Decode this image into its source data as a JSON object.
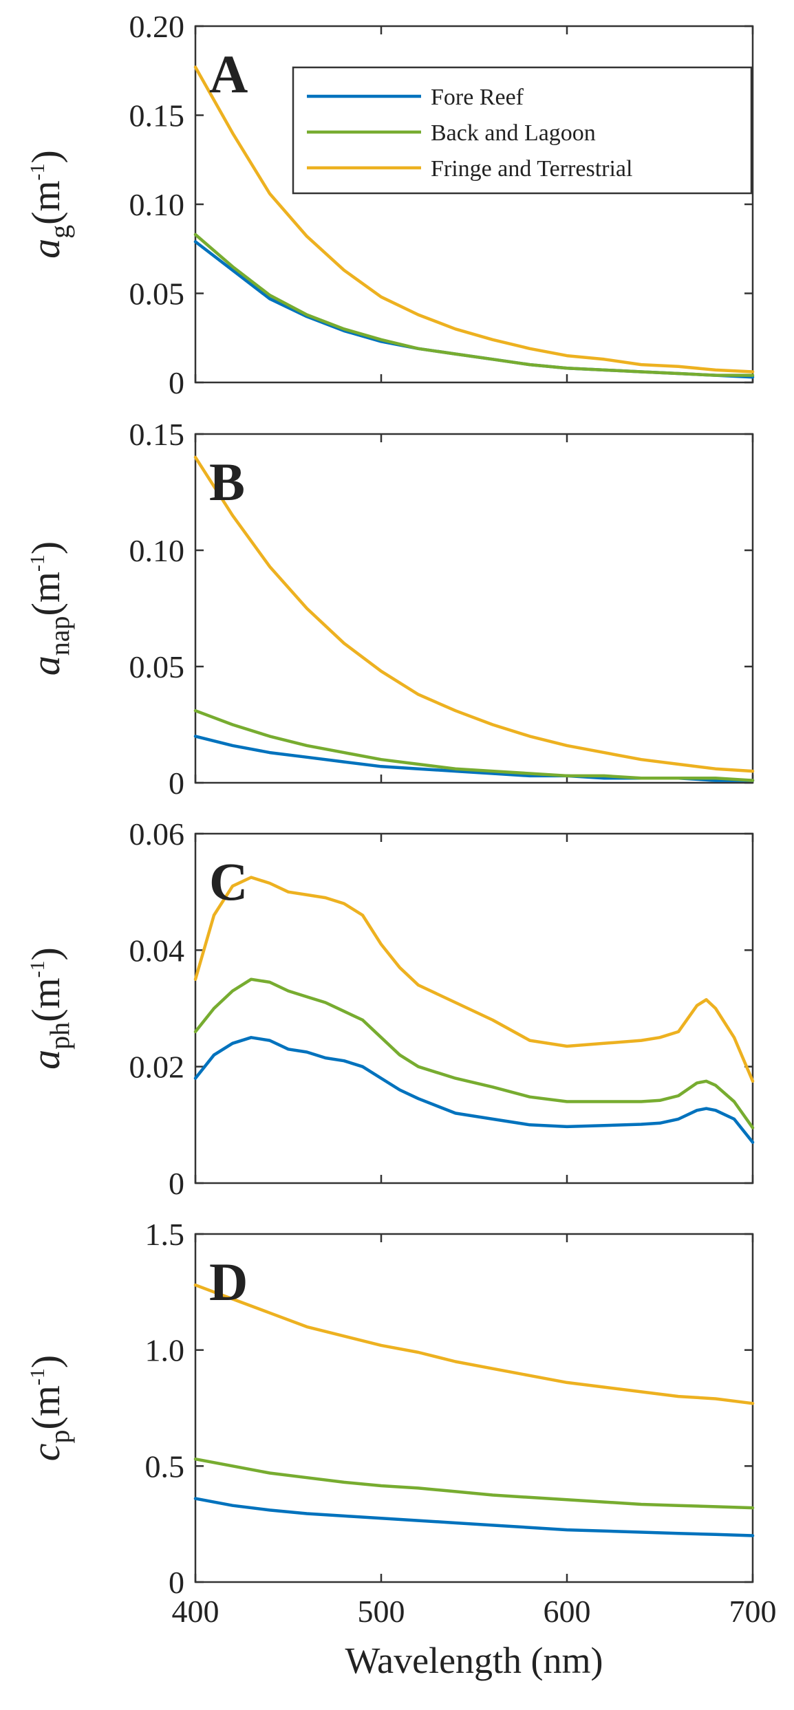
{
  "colors": {
    "Fore Reef": "#0072BD",
    "Back and Lagoon": "#77AC30",
    "Fringe and Terrestrial": "#EDB120"
  },
  "chart_data": [
    {
      "type": "line",
      "panel": "A",
      "ylabel": {
        "main": "a",
        "sub": "g",
        "unit": "(m",
        "sup": "-1",
        "close": ")"
      },
      "xlim": [
        400,
        700
      ],
      "ylim": [
        0,
        0.2
      ],
      "yticks": [
        "0",
        "0.05",
        "0.10",
        "0.15",
        "0.20"
      ],
      "ytick_values": [
        0,
        0.05,
        0.1,
        0.15,
        0.2
      ],
      "legend": {
        "location": "top-right",
        "entries": [
          "Fore Reef",
          "Back and Lagoon",
          "Fringe and Terrestrial"
        ]
      },
      "x": [
        400,
        420,
        440,
        460,
        480,
        500,
        520,
        540,
        560,
        580,
        600,
        620,
        640,
        660,
        680,
        700
      ],
      "series": [
        {
          "name": "Fore Reef",
          "values": [
            0.079,
            0.063,
            0.047,
            0.037,
            0.029,
            0.023,
            0.019,
            0.016,
            0.013,
            0.01,
            0.008,
            0.007,
            0.006,
            0.005,
            0.004,
            0.003
          ]
        },
        {
          "name": "Back and Lagoon",
          "values": [
            0.083,
            0.065,
            0.049,
            0.038,
            0.03,
            0.024,
            0.019,
            0.016,
            0.013,
            0.01,
            0.008,
            0.007,
            0.006,
            0.005,
            0.004,
            0.004
          ]
        },
        {
          "name": "Fringe and Terrestrial",
          "values": [
            0.177,
            0.14,
            0.106,
            0.082,
            0.063,
            0.048,
            0.038,
            0.03,
            0.024,
            0.019,
            0.015,
            0.013,
            0.01,
            0.009,
            0.007,
            0.006
          ]
        }
      ]
    },
    {
      "type": "line",
      "panel": "B",
      "ylabel": {
        "main": "a",
        "sub": "nap",
        "unit": "(m",
        "sup": "-1",
        "close": ")"
      },
      "xlim": [
        400,
        700
      ],
      "ylim": [
        0,
        0.15
      ],
      "yticks": [
        "0",
        "0.05",
        "0.10",
        "0.15"
      ],
      "ytick_values": [
        0,
        0.05,
        0.1,
        0.15
      ],
      "x": [
        400,
        420,
        440,
        460,
        480,
        500,
        520,
        540,
        560,
        580,
        600,
        620,
        640,
        660,
        680,
        700
      ],
      "series": [
        {
          "name": "Fore Reef",
          "values": [
            0.02,
            0.016,
            0.013,
            0.011,
            0.009,
            0.007,
            0.006,
            0.005,
            0.004,
            0.003,
            0.003,
            0.002,
            0.002,
            0.002,
            0.001,
            0.001
          ]
        },
        {
          "name": "Back and Lagoon",
          "values": [
            0.031,
            0.025,
            0.02,
            0.016,
            0.013,
            0.01,
            0.008,
            0.006,
            0.005,
            0.004,
            0.003,
            0.003,
            0.002,
            0.002,
            0.002,
            0.001
          ]
        },
        {
          "name": "Fringe and Terrestrial",
          "values": [
            0.14,
            0.115,
            0.093,
            0.075,
            0.06,
            0.048,
            0.038,
            0.031,
            0.025,
            0.02,
            0.016,
            0.013,
            0.01,
            0.008,
            0.006,
            0.005
          ]
        }
      ]
    },
    {
      "type": "line",
      "panel": "C",
      "ylabel": {
        "main": "a",
        "sub": "ph",
        "unit": "(m",
        "sup": "-1",
        "close": ")"
      },
      "xlim": [
        400,
        700
      ],
      "ylim": [
        0,
        0.06
      ],
      "yticks": [
        "0",
        "0.02",
        "0.04",
        "0.06"
      ],
      "ytick_values": [
        0,
        0.02,
        0.04,
        0.06
      ],
      "x": [
        400,
        410,
        420,
        430,
        440,
        450,
        460,
        470,
        480,
        490,
        500,
        510,
        520,
        540,
        560,
        580,
        600,
        620,
        640,
        650,
        660,
        670,
        675,
        680,
        690,
        700
      ],
      "series": [
        {
          "name": "Fore Reef",
          "values": [
            0.018,
            0.022,
            0.024,
            0.025,
            0.0245,
            0.023,
            0.0225,
            0.0215,
            0.021,
            0.02,
            0.018,
            0.016,
            0.0145,
            0.012,
            0.011,
            0.01,
            0.0097,
            0.0099,
            0.0101,
            0.0103,
            0.011,
            0.0125,
            0.0128,
            0.0125,
            0.011,
            0.007
          ]
        },
        {
          "name": "Back and Lagoon",
          "values": [
            0.026,
            0.03,
            0.033,
            0.035,
            0.0345,
            0.033,
            0.032,
            0.031,
            0.0295,
            0.028,
            0.025,
            0.022,
            0.02,
            0.018,
            0.0165,
            0.0148,
            0.014,
            0.014,
            0.014,
            0.0142,
            0.015,
            0.0172,
            0.0175,
            0.0168,
            0.014,
            0.0095
          ]
        },
        {
          "name": "Fringe and Terrestrial",
          "values": [
            0.035,
            0.046,
            0.051,
            0.0525,
            0.0515,
            0.05,
            0.0495,
            0.049,
            0.048,
            0.046,
            0.041,
            0.037,
            0.034,
            0.031,
            0.028,
            0.0245,
            0.0235,
            0.024,
            0.0245,
            0.025,
            0.026,
            0.0305,
            0.0315,
            0.03,
            0.025,
            0.0175
          ]
        }
      ]
    },
    {
      "type": "line",
      "panel": "D",
      "ylabel": {
        "main": "c",
        "sub": "p",
        "unit": "(m",
        "sup": "-1",
        "close": ")"
      },
      "xlabel": "Wavelength (nm)",
      "xlim": [
        400,
        700
      ],
      "xticks": [
        "400",
        "500",
        "600",
        "700"
      ],
      "xtick_values": [
        400,
        500,
        600,
        700
      ],
      "ylim": [
        0,
        1.5
      ],
      "yticks": [
        "0",
        "0.5",
        "1.0",
        "1.5"
      ],
      "ytick_values": [
        0,
        0.5,
        1.0,
        1.5
      ],
      "x": [
        400,
        420,
        440,
        460,
        480,
        500,
        520,
        540,
        560,
        580,
        600,
        620,
        640,
        660,
        680,
        700
      ],
      "series": [
        {
          "name": "Fore Reef",
          "values": [
            0.36,
            0.33,
            0.31,
            0.295,
            0.285,
            0.275,
            0.265,
            0.255,
            0.245,
            0.235,
            0.225,
            0.22,
            0.215,
            0.21,
            0.205,
            0.2
          ]
        },
        {
          "name": "Back and Lagoon",
          "values": [
            0.53,
            0.5,
            0.47,
            0.45,
            0.43,
            0.415,
            0.405,
            0.39,
            0.375,
            0.365,
            0.355,
            0.345,
            0.335,
            0.33,
            0.325,
            0.32
          ]
        },
        {
          "name": "Fringe and Terrestrial",
          "values": [
            1.28,
            1.22,
            1.16,
            1.1,
            1.06,
            1.02,
            0.99,
            0.95,
            0.92,
            0.89,
            0.86,
            0.84,
            0.82,
            0.8,
            0.79,
            0.77
          ]
        }
      ]
    }
  ]
}
